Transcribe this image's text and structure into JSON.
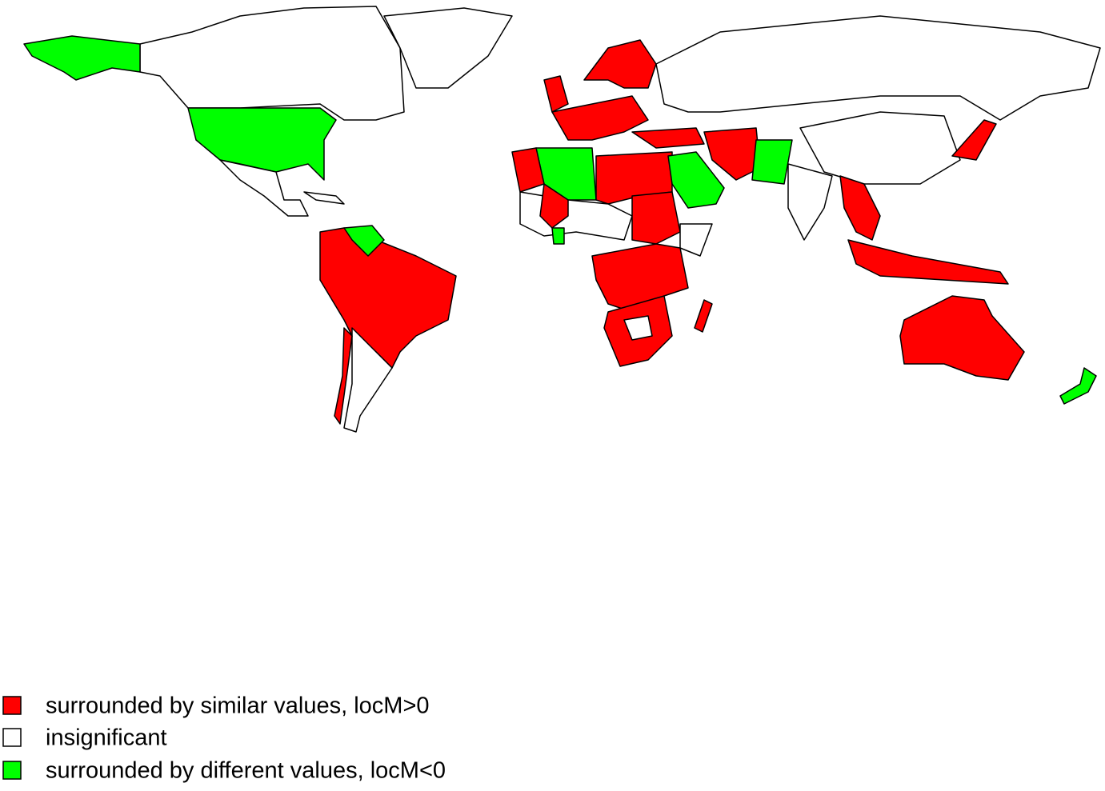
{
  "legend": {
    "items": [
      {
        "label": "surrounded by similar values, locM>0",
        "color": "#ff0000"
      },
      {
        "label": "insignificant",
        "color": "#ffffff"
      },
      {
        "label": "surrounded by different values, locM<0",
        "color": "#00ff00"
      }
    ]
  }
}
